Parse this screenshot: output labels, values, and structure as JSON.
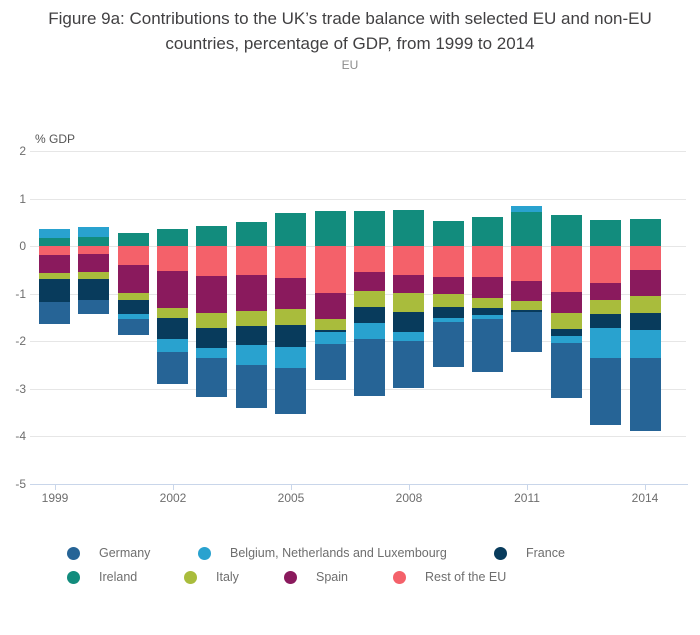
{
  "header": {
    "title": "Figure 9a: Contributions to the UK’s trade balance with selected EU and non-EU countries, percentage of GDP, from 1999 to 2014",
    "subtitle": "EU"
  },
  "colors": {
    "title_text": "#414042",
    "axis_text": "#6e6e6e",
    "gridline": "#e6e6e6",
    "axis_line": "#c9d6ea",
    "background": "#ffffff"
  },
  "chart_data": {
    "type": "bar",
    "stacked": true,
    "title": "Figure 9a: Contributions to the UK’s trade balance with selected EU and non-EU countries, percentage of GDP, from 1999 to 2014",
    "subtitle": "EU",
    "ylabel": "% GDP",
    "xlabel": "",
    "ylim": [
      -5,
      2
    ],
    "yticks": [
      2,
      1,
      0,
      -1,
      -2,
      -3,
      -4,
      -5
    ],
    "grid": true,
    "legend_position": "bottom",
    "categories": [
      "1999",
      "2000",
      "2001",
      "2002",
      "2003",
      "2004",
      "2005",
      "2006",
      "2007",
      "2008",
      "2009",
      "2010",
      "2011",
      "2012",
      "2013",
      "2014"
    ],
    "x_tick_labels": [
      "1999",
      "2002",
      "2005",
      "2008",
      "2011",
      "2014"
    ],
    "series": [
      {
        "name": "Germany",
        "color": "#266496",
        "values": [
          -0.47,
          -0.29,
          -0.33,
          -0.68,
          -0.83,
          -0.91,
          -0.97,
          -0.76,
          -1.19,
          -0.99,
          -0.93,
          -1.11,
          -0.84,
          -1.15,
          -1.42,
          -1.52
        ]
      },
      {
        "name": "Belgium, Netherlands and Luxembourg",
        "color": "#29a2cf",
        "values": [
          0.2,
          0.21,
          -0.1,
          -0.26,
          -0.2,
          -0.42,
          -0.45,
          -0.25,
          -0.33,
          -0.2,
          -0.08,
          -0.1,
          0.13,
          -0.16,
          -0.64,
          -0.59
        ]
      },
      {
        "name": "France",
        "color": "#083b5c",
        "values": [
          -0.49,
          -0.45,
          -0.29,
          -0.46,
          -0.42,
          -0.39,
          -0.46,
          -0.04,
          -0.34,
          -0.41,
          -0.25,
          -0.13,
          -0.04,
          -0.13,
          -0.29,
          -0.36
        ]
      },
      {
        "name": "Ireland",
        "color": "#128c7d",
        "values": [
          0.17,
          0.19,
          0.28,
          0.37,
          0.42,
          0.5,
          0.7,
          0.73,
          0.73,
          0.77,
          0.52,
          0.61,
          0.71,
          0.65,
          0.55,
          0.58
        ]
      },
      {
        "name": "Italy",
        "color": "#a9bc3c",
        "values": [
          -0.12,
          -0.13,
          -0.16,
          -0.2,
          -0.32,
          -0.31,
          -0.32,
          -0.23,
          -0.34,
          -0.4,
          -0.27,
          -0.22,
          -0.2,
          -0.34,
          -0.28,
          -0.37
        ]
      },
      {
        "name": "Spain",
        "color": "#8a1a5d",
        "values": [
          -0.37,
          -0.39,
          -0.59,
          -0.78,
          -0.79,
          -0.77,
          -0.66,
          -0.56,
          -0.4,
          -0.39,
          -0.36,
          -0.44,
          -0.41,
          -0.44,
          -0.37,
          -0.53
        ]
      },
      {
        "name": "Rest of the EU",
        "color": "#f4616a",
        "values": [
          -0.19,
          -0.16,
          -0.39,
          -0.52,
          -0.62,
          -0.6,
          -0.67,
          -0.98,
          -0.54,
          -0.6,
          -0.64,
          -0.65,
          -0.74,
          -0.97,
          -0.77,
          -0.51
        ]
      }
    ]
  }
}
